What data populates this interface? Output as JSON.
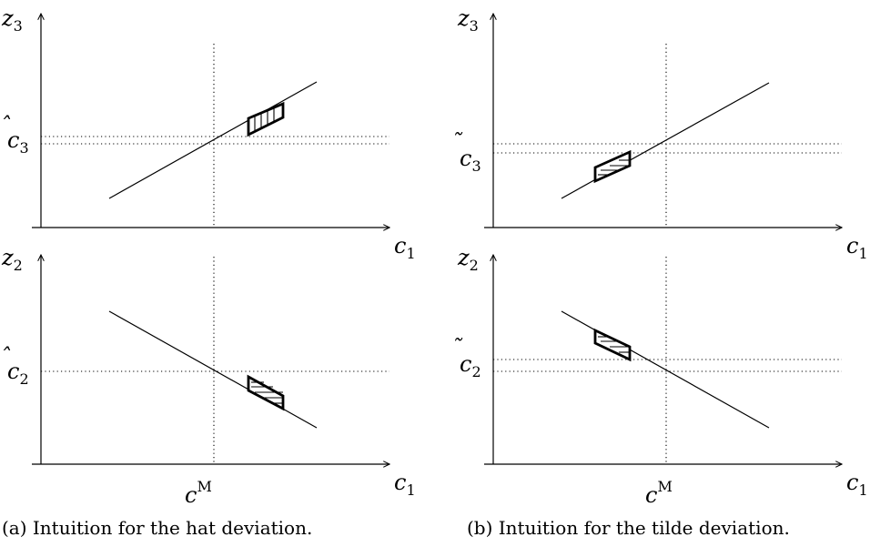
{
  "panels": [
    {
      "caption": "(a) Intuition for the hat deviation.",
      "top": {
        "y_axis": "z",
        "y_sub": "3",
        "x_axis": "c",
        "x_sub": "1",
        "tick": "c",
        "tick_mark": "̂",
        "tick_sub": "3"
      },
      "bottom": {
        "y_axis": "z",
        "y_sub": "2",
        "x_axis": "c",
        "x_sub": "1",
        "tick": "c",
        "tick_mark": "̂",
        "tick_sub": "2"
      },
      "x_marker": "c",
      "x_marker_sup": "M",
      "hatch_direction": "vertical"
    },
    {
      "caption": "(b) Intuition for the tilde deviation.",
      "top": {
        "y_axis": "z",
        "y_sub": "3",
        "x_axis": "c",
        "x_sub": "1",
        "tick": "c",
        "tick_mark": "̃",
        "tick_sub": "3"
      },
      "bottom": {
        "y_axis": "z",
        "y_sub": "2",
        "x_axis": "c",
        "x_sub": "1",
        "tick": "c",
        "tick_mark": "̃",
        "tick_sub": "2"
      },
      "x_marker": "c",
      "x_marker_sup": "M",
      "hatch_direction": "horizontal"
    }
  ]
}
